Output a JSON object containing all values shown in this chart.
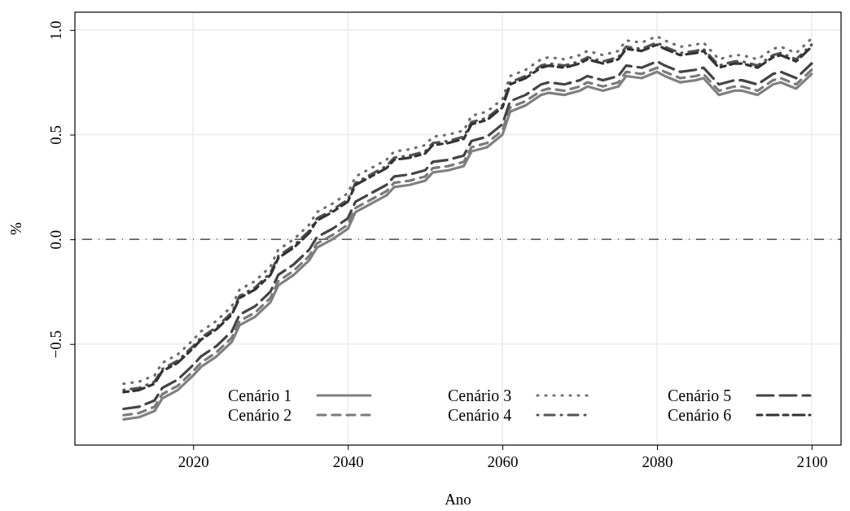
{
  "chart_data": {
    "type": "line",
    "xlabel": "Ano",
    "ylabel": "%",
    "x": [
      2011,
      2013,
      2015,
      2016,
      2018,
      2020,
      2021,
      2023,
      2025,
      2026,
      2028,
      2030,
      2031,
      2033,
      2035,
      2036,
      2038,
      2040,
      2041,
      2043,
      2045,
      2046,
      2048,
      2050,
      2051,
      2053,
      2055,
      2056,
      2058,
      2060,
      2061,
      2063,
      2065,
      2066,
      2068,
      2070,
      2071,
      2073,
      2075,
      2076,
      2078,
      2080,
      2081,
      2083,
      2085,
      2086,
      2088,
      2090,
      2091,
      2093,
      2095,
      2096,
      2098,
      2100
    ],
    "series": [
      {
        "name": "Cenário 1",
        "color": "#808080",
        "line_style": "solid",
        "values": [
          -0.86,
          -0.85,
          -0.82,
          -0.76,
          -0.72,
          -0.65,
          -0.61,
          -0.56,
          -0.49,
          -0.41,
          -0.37,
          -0.3,
          -0.22,
          -0.17,
          -0.1,
          -0.04,
          0.0,
          0.05,
          0.13,
          0.17,
          0.21,
          0.25,
          0.26,
          0.28,
          0.32,
          0.33,
          0.35,
          0.42,
          0.44,
          0.5,
          0.61,
          0.64,
          0.69,
          0.7,
          0.69,
          0.71,
          0.73,
          0.71,
          0.73,
          0.78,
          0.77,
          0.8,
          0.78,
          0.75,
          0.76,
          0.77,
          0.69,
          0.71,
          0.71,
          0.69,
          0.74,
          0.75,
          0.72,
          0.79
        ]
      },
      {
        "name": "Cenário 2",
        "color": "#7a7a7a",
        "line_style": "dashed",
        "values": [
          -0.84,
          -0.83,
          -0.8,
          -0.74,
          -0.7,
          -0.63,
          -0.59,
          -0.54,
          -0.47,
          -0.39,
          -0.35,
          -0.28,
          -0.2,
          -0.15,
          -0.08,
          -0.02,
          0.02,
          0.07,
          0.15,
          0.19,
          0.23,
          0.27,
          0.28,
          0.3,
          0.34,
          0.35,
          0.37,
          0.44,
          0.46,
          0.52,
          0.63,
          0.66,
          0.71,
          0.72,
          0.71,
          0.73,
          0.75,
          0.73,
          0.75,
          0.8,
          0.79,
          0.82,
          0.8,
          0.77,
          0.78,
          0.79,
          0.71,
          0.73,
          0.73,
          0.71,
          0.76,
          0.77,
          0.74,
          0.81
        ]
      },
      {
        "name": "Cenário 3",
        "color": "#6e6e6e",
        "line_style": "dotted",
        "values": [
          -0.69,
          -0.68,
          -0.65,
          -0.59,
          -0.55,
          -0.48,
          -0.44,
          -0.39,
          -0.32,
          -0.24,
          -0.2,
          -0.13,
          -0.05,
          0.0,
          0.07,
          0.13,
          0.17,
          0.22,
          0.3,
          0.34,
          0.38,
          0.42,
          0.43,
          0.45,
          0.49,
          0.5,
          0.52,
          0.59,
          0.61,
          0.67,
          0.78,
          0.81,
          0.86,
          0.87,
          0.86,
          0.88,
          0.9,
          0.88,
          0.9,
          0.95,
          0.94,
          0.97,
          0.95,
          0.92,
          0.93,
          0.94,
          0.86,
          0.88,
          0.88,
          0.86,
          0.91,
          0.92,
          0.89,
          0.96
        ]
      },
      {
        "name": "Cenário 4",
        "color": "#555555",
        "line_style": "dotdash",
        "values": [
          -0.72,
          -0.71,
          -0.68,
          -0.62,
          -0.58,
          -0.51,
          -0.47,
          -0.42,
          -0.35,
          -0.27,
          -0.23,
          -0.16,
          -0.08,
          -0.03,
          0.04,
          0.1,
          0.14,
          0.19,
          0.27,
          0.31,
          0.35,
          0.39,
          0.4,
          0.42,
          0.46,
          0.47,
          0.49,
          0.56,
          0.58,
          0.64,
          0.75,
          0.78,
          0.83,
          0.84,
          0.83,
          0.85,
          0.87,
          0.85,
          0.87,
          0.92,
          0.91,
          0.94,
          0.92,
          0.89,
          0.9,
          0.91,
          0.83,
          0.85,
          0.85,
          0.83,
          0.88,
          0.89,
          0.86,
          0.93
        ]
      },
      {
        "name": "Cenário 5",
        "color": "#444444",
        "line_style": "longdash",
        "values": [
          -0.81,
          -0.8,
          -0.77,
          -0.71,
          -0.67,
          -0.6,
          -0.56,
          -0.51,
          -0.44,
          -0.36,
          -0.32,
          -0.25,
          -0.17,
          -0.12,
          -0.05,
          0.01,
          0.05,
          0.1,
          0.18,
          0.22,
          0.26,
          0.3,
          0.31,
          0.33,
          0.37,
          0.38,
          0.4,
          0.47,
          0.49,
          0.55,
          0.66,
          0.69,
          0.74,
          0.75,
          0.74,
          0.76,
          0.78,
          0.76,
          0.78,
          0.83,
          0.82,
          0.85,
          0.83,
          0.8,
          0.81,
          0.82,
          0.74,
          0.76,
          0.76,
          0.74,
          0.79,
          0.8,
          0.77,
          0.84
        ]
      },
      {
        "name": "Cenário 6",
        "color": "#333333",
        "line_style": "twodash",
        "values": [
          -0.73,
          -0.72,
          -0.69,
          -0.63,
          -0.59,
          -0.52,
          -0.48,
          -0.43,
          -0.36,
          -0.28,
          -0.24,
          -0.17,
          -0.09,
          -0.04,
          0.03,
          0.09,
          0.13,
          0.18,
          0.26,
          0.3,
          0.34,
          0.38,
          0.39,
          0.41,
          0.45,
          0.46,
          0.48,
          0.55,
          0.57,
          0.63,
          0.74,
          0.77,
          0.82,
          0.83,
          0.82,
          0.84,
          0.86,
          0.84,
          0.86,
          0.91,
          0.9,
          0.93,
          0.91,
          0.88,
          0.89,
          0.9,
          0.82,
          0.84,
          0.84,
          0.82,
          0.87,
          0.88,
          0.85,
          0.92
        ]
      }
    ],
    "xlim": [
      2004.7,
      2103.8
    ],
    "xticks": [
      2020,
      2040,
      2060,
      2080,
      2100
    ],
    "ylim": [
      -0.983,
      1.085
    ],
    "yticks": [
      {
        "value": -0.5,
        "label": "−0.5"
      },
      {
        "value": 0,
        "label": "0.0"
      },
      {
        "value": 0.5,
        "label": "0.5"
      },
      {
        "value": 1,
        "label": "1.0"
      }
    ],
    "ref_lines": [
      {
        "axis": "y",
        "value": 0,
        "color": "#000000",
        "line_style": "dotdash"
      }
    ],
    "grid": true,
    "legend": "bottom"
  }
}
